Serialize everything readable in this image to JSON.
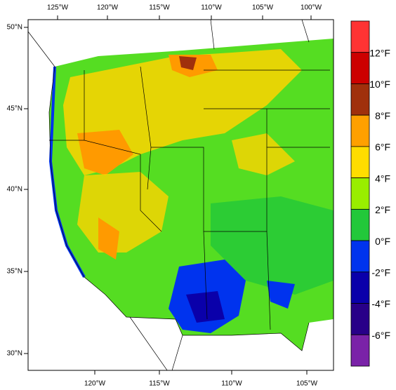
{
  "map": {
    "lon_ticks_top": [
      "125°W",
      "120°W",
      "115°W",
      "110°W",
      "105°W",
      "100°W"
    ],
    "lon_ticks_bottom": [
      "120°W",
      "115°W",
      "110°W",
      "105°W"
    ],
    "lat_ticks": [
      "50°N",
      "45°N",
      "40°N",
      "35°N",
      "30°N"
    ],
    "colorbar": {
      "colors": [
        "#ff3333",
        "#cc0000",
        "#a0300c",
        "#ffa000",
        "#ffdd00",
        "#99ee00",
        "#22c83a",
        "#0033ee",
        "#0a00aa",
        "#280088",
        "#7a22a8"
      ],
      "labels": [
        "12°F",
        "10°F",
        "8°F",
        "6°F",
        "4°F",
        "2°F",
        "0°F",
        "-2°F",
        "-4°F",
        "-6°F"
      ]
    }
  }
}
